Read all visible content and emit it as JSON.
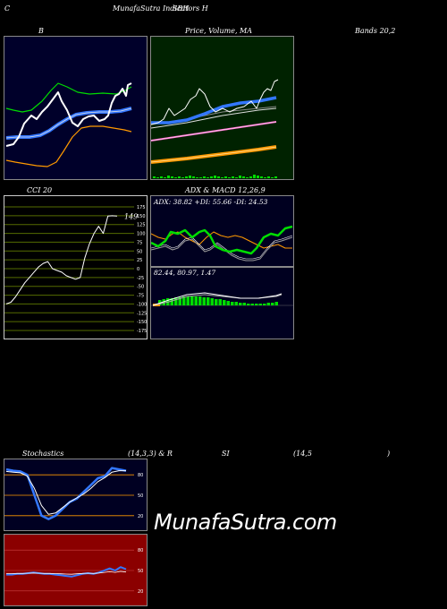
{
  "header": {
    "left": "C",
    "center": "MunafaSutra Indicators H",
    "right": "SBH"
  },
  "row1": {
    "bb_label": "B",
    "price_label": "Price, Volume, MA",
    "bands_label": "Bands 20,2"
  },
  "row2": {
    "cci_label": "CCI 20",
    "adx_label": "ADX  & MACD 12,26,9",
    "adx_values": "ADX: 38.82  +DI: 55.66  -DI: 24.53",
    "macd_values": "82.44,  80.97,  1.47",
    "cci_value": "149"
  },
  "row3": {
    "stoch_label": "Stochastics",
    "stoch_params": "(14,3,3) & R",
    "rsi_label": "SI",
    "rsi_params": "(14,5",
    "rsi_close": ")"
  },
  "watermark": "MunafaSutra.com",
  "colors": {
    "bb_bg": "#00002a",
    "price_bg": "#002200",
    "cci_bg": "#000000",
    "cci_line": "#556b00",
    "macd_bg": "#000020",
    "stoch_bg": "#000022",
    "rsi_bg": "#8b0000",
    "blue": "#3377ff",
    "green": "#00dd00",
    "orange": "#ff9900",
    "pink": "#ff66cc"
  },
  "chart_data": [
    {
      "type": "line",
      "panel": "bollinger",
      "series": [
        {
          "name": "",
          "values": [
            62,
            62,
            63,
            65,
            67,
            70,
            73,
            75,
            79,
            82,
            90,
            88,
            78,
            72,
            65,
            60,
            58,
            55,
            58,
            62,
            70,
            80,
            84,
            86,
            92
          ]
        },
        {
          "name": "",
          "values": [
            75,
            72,
            66,
            65,
            68,
            70,
            73,
            76,
            79,
            82,
            86,
            88,
            82,
            84,
            80,
            78,
            82,
            86,
            88,
            82,
            80,
            82,
            84,
            86,
            92
          ]
        }
      ]
    },
    {
      "type": "line",
      "panel": "cci",
      "yticks": [
        175,
        150,
        125,
        100,
        75,
        50,
        25,
        0,
        -25,
        -50,
        -75,
        -100,
        -125,
        -150,
        -175
      ],
      "values": [
        -100,
        -95,
        -80,
        -60,
        -40,
        -25,
        -10,
        5,
        15,
        20,
        0,
        -5,
        -10,
        -20,
        -25,
        -30,
        -25,
        30,
        70,
        100,
        120,
        100,
        149,
        150,
        149
      ],
      "last_value": 149
    },
    {
      "type": "line",
      "panel": "adx",
      "adx": 38.82,
      "plus_di": 55.66,
      "minus_di": 24.53
    },
    {
      "type": "line",
      "panel": "macd",
      "macd": 82.44,
      "signal": 80.97,
      "histogram": 1.47
    },
    {
      "type": "line",
      "panel": "stochastics",
      "yticks": [
        80,
        50,
        20
      ],
      "k": [
        88,
        86,
        85,
        80,
        50,
        20,
        15,
        20,
        30,
        40,
        45,
        55,
        65,
        75,
        78,
        90,
        88,
        86
      ],
      "d": [
        85,
        84,
        83,
        78,
        60,
        35,
        22,
        24,
        32,
        40,
        46,
        52,
        60,
        70,
        76,
        84,
        86,
        86
      ]
    },
    {
      "type": "line",
      "panel": "rsi",
      "yticks": [
        80,
        50,
        20
      ],
      "values": [
        44,
        44,
        45,
        45,
        46,
        47,
        46,
        45,
        45,
        44,
        43,
        42,
        41,
        43,
        45,
        46,
        45,
        47,
        50,
        53,
        50,
        55,
        52
      ]
    }
  ]
}
